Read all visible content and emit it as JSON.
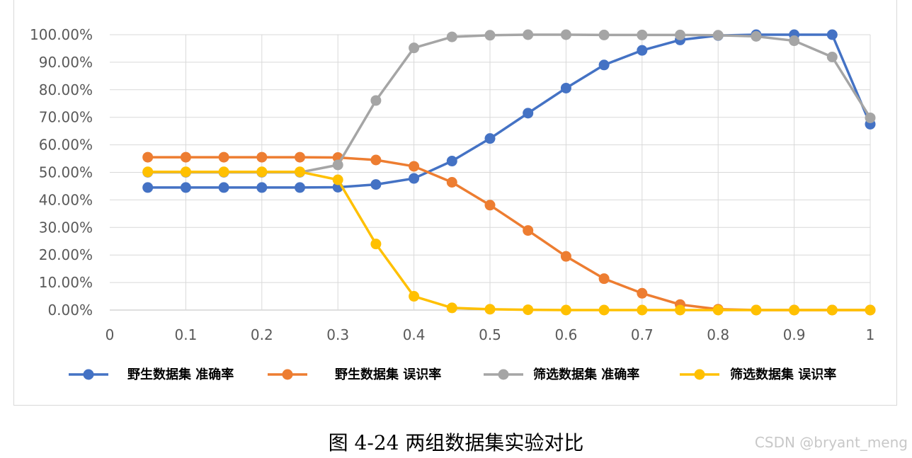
{
  "chart_data": {
    "type": "line",
    "x": [
      0.05,
      0.1,
      0.15,
      0.2,
      0.25,
      0.3,
      0.35,
      0.4,
      0.45,
      0.5,
      0.55,
      0.6,
      0.65,
      0.7,
      0.75,
      0.8,
      0.85,
      0.9,
      0.95,
      1.0
    ],
    "xlim": [
      0,
      1
    ],
    "xticks": [
      "0",
      "0.1",
      "0.2",
      "0.3",
      "0.4",
      "0.5",
      "0.6",
      "0.7",
      "0.8",
      "0.9",
      "1"
    ],
    "ylim": [
      0,
      100
    ],
    "yticks": [
      "0.00%",
      "10.00%",
      "20.00%",
      "30.00%",
      "40.00%",
      "50.00%",
      "60.00%",
      "70.00%",
      "80.00%",
      "90.00%",
      "100.00%"
    ],
    "grid": true,
    "legend_position": "bottom",
    "series": [
      {
        "name": "野生数据集 准确率",
        "color": "#4472c4",
        "values": [
          44.5,
          44.5,
          44.5,
          44.5,
          44.5,
          44.6,
          45.6,
          47.8,
          54.1,
          62.3,
          71.5,
          80.6,
          89.0,
          94.3,
          98.1,
          99.7,
          100.0,
          100.0,
          100.0,
          67.5
        ]
      },
      {
        "name": "野生数据集 误识率",
        "color": "#ed7d31",
        "values": [
          55.5,
          55.5,
          55.5,
          55.5,
          55.5,
          55.4,
          54.5,
          52.2,
          46.4,
          38.1,
          28.9,
          19.5,
          11.4,
          6.1,
          2.0,
          0.3,
          0.0,
          0.0,
          0.0,
          0.0
        ]
      },
      {
        "name": "筛选数据集 准确率",
        "color": "#a5a5a5",
        "values": [
          50.0,
          50.0,
          50.0,
          50.0,
          50.0,
          52.7,
          76.1,
          95.2,
          99.2,
          99.8,
          100.0,
          100.0,
          99.9,
          99.9,
          99.9,
          99.8,
          99.4,
          97.8,
          91.9,
          69.8
        ]
      },
      {
        "name": "筛选数据集 误识率",
        "color": "#ffc000",
        "values": [
          50.2,
          50.2,
          50.2,
          50.2,
          50.2,
          47.3,
          24.0,
          5.0,
          0.8,
          0.3,
          0.1,
          0.0,
          0.0,
          0.0,
          0.0,
          0.0,
          0.0,
          0.0,
          0.0,
          0.0
        ]
      }
    ]
  },
  "caption": "图 4-24 两组数据集实验对比",
  "watermark": "CSDN @bryant_meng"
}
